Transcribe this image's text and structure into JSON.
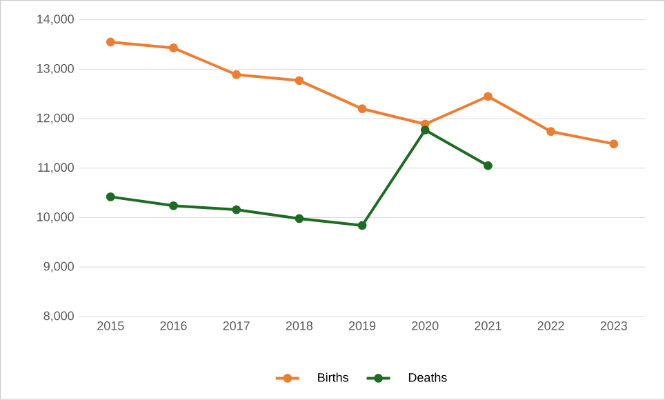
{
  "chart_data": {
    "type": "line",
    "categories": [
      "2015",
      "2016",
      "2017",
      "2018",
      "2019",
      "2020",
      "2021",
      "2022",
      "2023"
    ],
    "series": [
      {
        "name": "Births",
        "color": "#ed7d31",
        "values": [
          13550,
          13430,
          12890,
          12770,
          12200,
          11890,
          12450,
          11740,
          11490
        ]
      },
      {
        "name": "Deaths",
        "color": "#1e6b24",
        "values": [
          10420,
          10240,
          10160,
          9980,
          9840,
          11770,
          11050,
          null,
          null
        ]
      }
    ],
    "ylim": [
      8000,
      14000
    ],
    "yticks": [
      {
        "value": 8000,
        "label": "8,000"
      },
      {
        "value": 9000,
        "label": "9,000"
      },
      {
        "value": 10000,
        "label": "10,000"
      },
      {
        "value": 11000,
        "label": "11,000"
      },
      {
        "value": 12000,
        "label": "12,000"
      },
      {
        "value": 13000,
        "label": "13,000"
      },
      {
        "value": 14000,
        "label": "14,000"
      }
    ],
    "grid": "y",
    "legend": "bottom",
    "marker": "circle",
    "line_style": "solid"
  }
}
